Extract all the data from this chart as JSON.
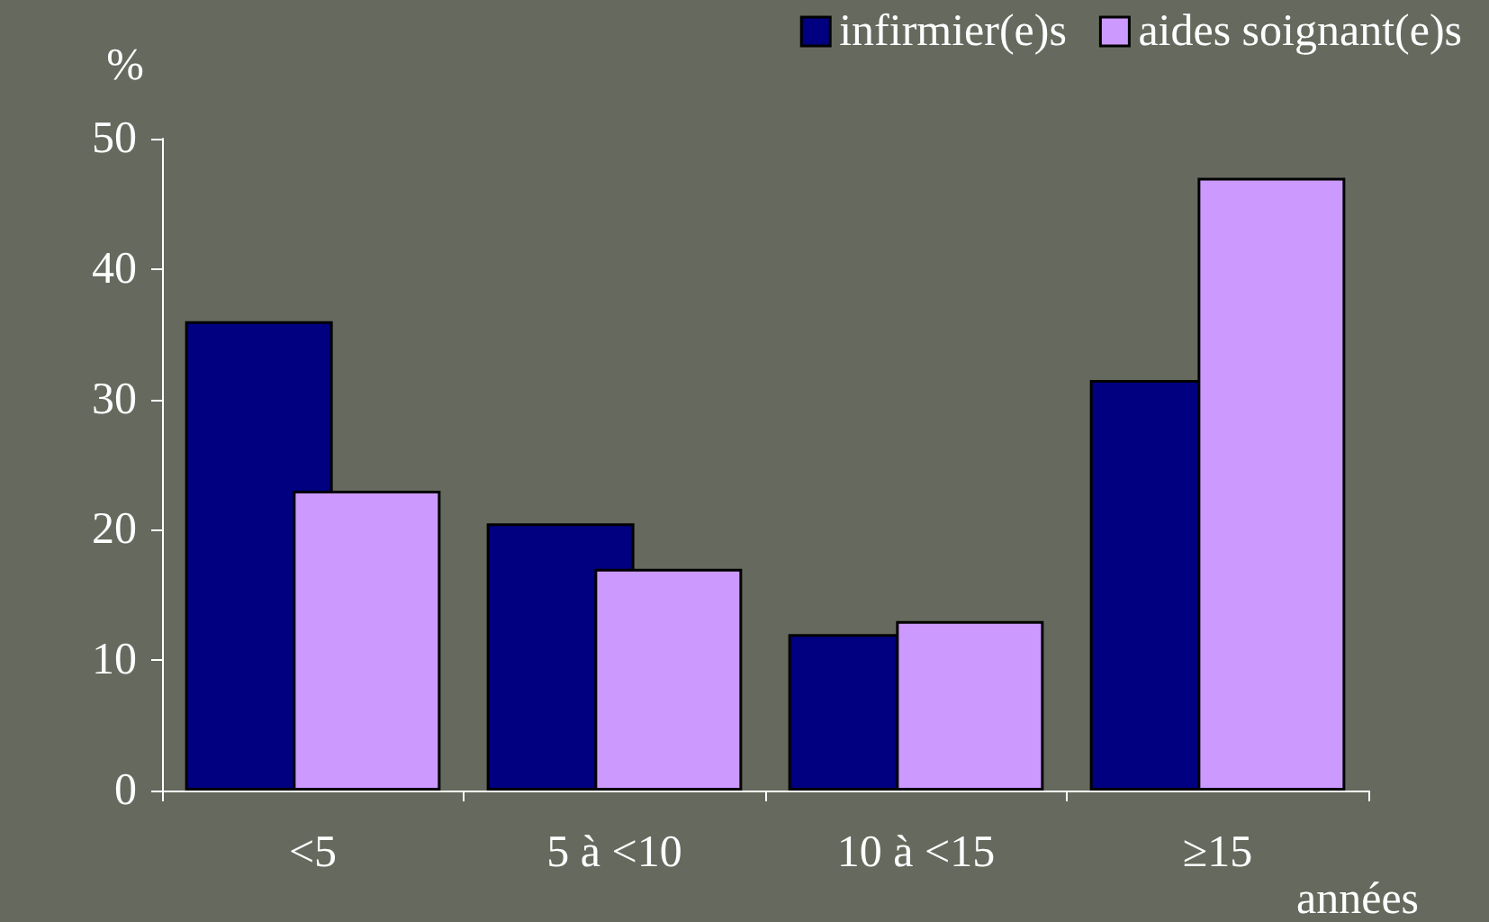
{
  "chart_data": {
    "type": "bar",
    "ylabel": "%",
    "xlabel": "années",
    "categories": [
      "<5",
      "5 à <10",
      "10 à <15",
      "≥15"
    ],
    "series": [
      {
        "name": "infirmier(e)s",
        "color": "#000080",
        "values": [
          36,
          20.5,
          12,
          31.5
        ]
      },
      {
        "name": "aides soignant(e)s",
        "color": "#cc99ff",
        "values": [
          23,
          17,
          13,
          47
        ]
      }
    ],
    "ylim": [
      0,
      50
    ],
    "yticks": [
      0,
      10,
      20,
      30,
      40,
      50
    ],
    "grid": false,
    "legend": "top right"
  }
}
